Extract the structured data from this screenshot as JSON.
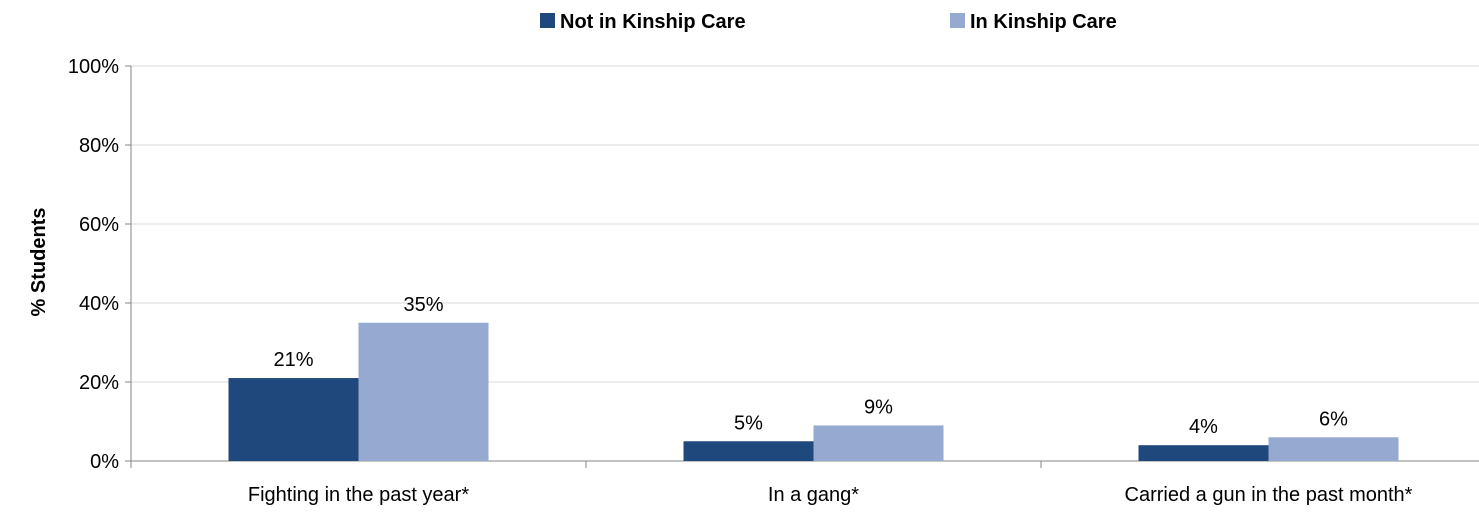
{
  "chart_data": {
    "type": "bar",
    "title": "",
    "xlabel": "",
    "ylabel": "% Students",
    "ylim": [
      0,
      100
    ],
    "yticks": [
      0,
      20,
      40,
      60,
      80,
      100
    ],
    "ytick_labels": [
      "0%",
      "20%",
      "40%",
      "60%",
      "80%",
      "100%"
    ],
    "grid": true,
    "legend_position": "top",
    "categories": [
      "Fighting in the past year*",
      "In a gang*",
      "Carried a gun in the past month*"
    ],
    "series": [
      {
        "name": "Not in Kinship Care",
        "color": "#1F497D",
        "values": [
          21,
          5,
          4
        ],
        "labels": [
          "21%",
          "5%",
          "4%"
        ]
      },
      {
        "name": "In Kinship Care",
        "color": "#95A9D1",
        "values": [
          35,
          9,
          6
        ],
        "labels": [
          "35%",
          "9%",
          "6%"
        ]
      }
    ]
  }
}
